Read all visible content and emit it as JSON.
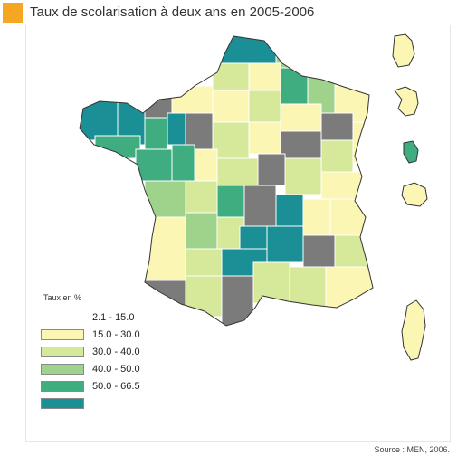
{
  "title": "Taux de scolarisation à deux ans en 2005-2006",
  "source": "Source : MEN, 2006.",
  "legend": {
    "title": "Taux en %",
    "classes": [
      {
        "label": "2.1 - 15.0",
        "color": "#fcf6b4"
      },
      {
        "label": "15.0 - 30.0",
        "color": "#d6e99a"
      },
      {
        "label": "30.0 - 40.0",
        "color": "#9fd28a"
      },
      {
        "label": "40.0 - 50.0",
        "color": "#3fad7f"
      },
      {
        "label": "50.0 - 66.5",
        "color": "#1a8f96"
      },
      {
        "label": "",
        "color": "#7b7b7b"
      }
    ]
  },
  "colors": {
    "accent": "#f5a623",
    "class1": "#fcf6b4",
    "class2": "#d6e99a",
    "class3": "#9fd28a",
    "class4": "#3fad7f",
    "class5": "#1a8f96",
    "nodata": "#7b7b7b",
    "border": "#ffffff",
    "outline": "#333333"
  }
}
